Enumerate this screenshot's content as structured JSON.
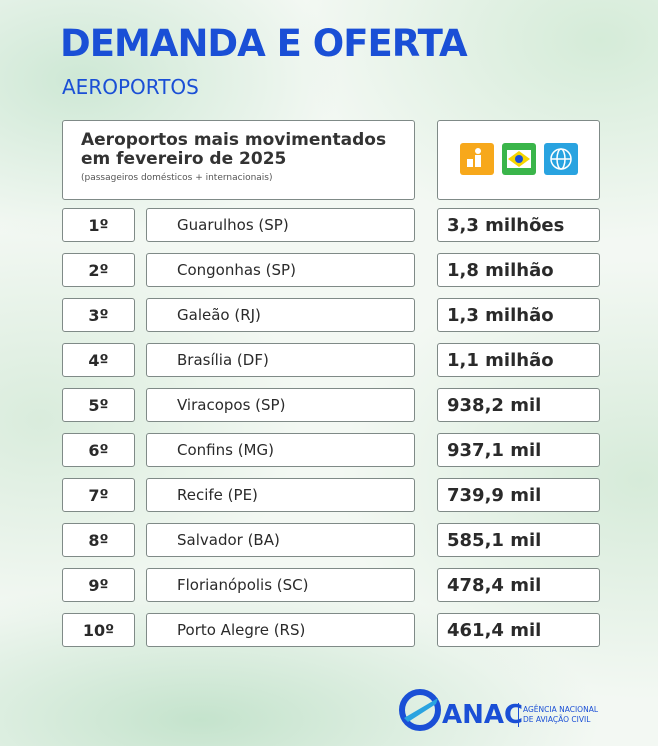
{
  "header": {
    "title": "DEMANDA E OFERTA",
    "subtitle": "AEROPORTOS"
  },
  "table": {
    "title_lines": [
      "Aeroportos mais movimentados",
      "em fevereiro de 2025"
    ],
    "note": "(passageiros domésticos + internacionais)",
    "rows": [
      [
        "1º",
        "Guarulhos (SP)",
        "3,3 milhões"
      ],
      [
        "2º",
        "Congonhas (SP)",
        "1,8 milhão"
      ],
      [
        "3º",
        "Galeão (RJ)",
        "1,3 milhão"
      ],
      [
        "4º",
        "Brasília (DF)",
        "1,1 milhão"
      ],
      [
        "5º",
        "Viracopos (SP)",
        "938,2 mil"
      ],
      [
        "6º",
        "Confins (MG)",
        "937,1 mil"
      ],
      [
        "7º",
        "Recife (PE)",
        "739,9 mil"
      ],
      [
        "8º",
        "Salvador (BA)",
        "585,1 mil"
      ],
      [
        "9º",
        "Florianópolis (SC)",
        "478,4 mil"
      ],
      [
        "10º",
        "Porto Alegre (RS)",
        "461,4 mil"
      ]
    ]
  },
  "footer": {
    "logo": "ANAC",
    "agency_lines": [
      "AGÊNCIA NACIONAL",
      "DE AVIAÇÃO CIVIL"
    ]
  }
}
